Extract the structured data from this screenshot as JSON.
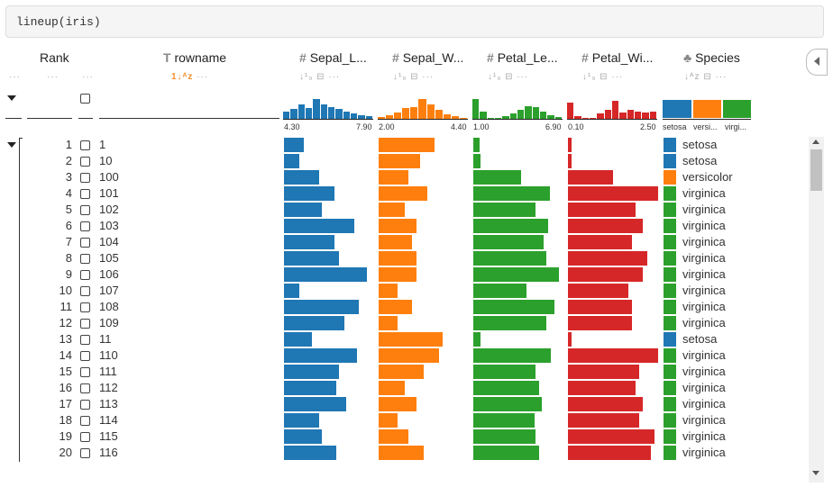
{
  "code": "lineup(iris)",
  "headers": {
    "rank": "Rank",
    "rowname": "rowname",
    "sepal_length": "Sepal_L...",
    "sepal_width": "Sepal_W...",
    "petal_length": "Petal_Le...",
    "petal_width": "Petal_Wi...",
    "species": "Species"
  },
  "icons": {
    "text_type": "T",
    "numeric_type": "#",
    "more": "···",
    "sort_num": "↓¹₉",
    "sort_alpha": "1↓ᴬᴢ",
    "sort_alpha_inactive": "↓ᴬᴢ",
    "filter": "⊟"
  },
  "axis": {
    "sepal_length": {
      "min": "4.30",
      "max": "7.90"
    },
    "sepal_width": {
      "min": "2.00",
      "max": "4.40"
    },
    "petal_length": {
      "min": "1.00",
      "max": "6.90"
    },
    "petal_width": {
      "min": "0.10",
      "max": "2.50"
    }
  },
  "species_labels": {
    "setosa": "setosa",
    "versicolor": "versi...",
    "virginica": "virgi..."
  },
  "colors": {
    "sepal_length": "#1f77b4",
    "sepal_width": "#ff7f0e",
    "petal_length": "#2ca02c",
    "petal_width": "#d62728",
    "setosa": "#1f77b4",
    "versicolor": "#ff7f0e",
    "virginica": "#2ca02c"
  },
  "histograms": {
    "sepal_length": [
      0.38,
      0.5,
      0.72,
      0.55,
      1.0,
      0.72,
      0.6,
      0.5,
      0.38,
      0.28,
      0.18,
      0.12
    ],
    "sepal_width": [
      0.1,
      0.18,
      0.32,
      0.55,
      0.6,
      1.0,
      0.72,
      0.45,
      0.25,
      0.12,
      0.06
    ],
    "petal_length": [
      1.0,
      0.38,
      0.04,
      0.04,
      0.12,
      0.28,
      0.45,
      0.62,
      0.6,
      0.38,
      0.18,
      0.08
    ],
    "petal_width": [
      0.82,
      0.12,
      0.04,
      0.04,
      0.28,
      0.45,
      0.92,
      0.3,
      0.45,
      0.38,
      0.3,
      0.35
    ]
  },
  "rows": [
    {
      "rank": "1",
      "name": "1",
      "sl": 5.1,
      "sw": 3.5,
      "pl": 1.4,
      "pw": 0.2,
      "species": "setosa"
    },
    {
      "rank": "2",
      "name": "10",
      "sl": 4.9,
      "sw": 3.1,
      "pl": 1.5,
      "pw": 0.1,
      "species": "setosa"
    },
    {
      "rank": "3",
      "name": "100",
      "sl": 5.7,
      "sw": 2.8,
      "pl": 4.1,
      "pw": 1.3,
      "species": "versicolor"
    },
    {
      "rank": "4",
      "name": "101",
      "sl": 6.3,
      "sw": 3.3,
      "pl": 6.0,
      "pw": 2.5,
      "species": "virginica"
    },
    {
      "rank": "5",
      "name": "102",
      "sl": 5.8,
      "sw": 2.7,
      "pl": 5.1,
      "pw": 1.9,
      "species": "virginica"
    },
    {
      "rank": "6",
      "name": "103",
      "sl": 7.1,
      "sw": 3.0,
      "pl": 5.9,
      "pw": 2.1,
      "species": "virginica"
    },
    {
      "rank": "7",
      "name": "104",
      "sl": 6.3,
      "sw": 2.9,
      "pl": 5.6,
      "pw": 1.8,
      "species": "virginica"
    },
    {
      "rank": "8",
      "name": "105",
      "sl": 6.5,
      "sw": 3.0,
      "pl": 5.8,
      "pw": 2.2,
      "species": "virginica"
    },
    {
      "rank": "9",
      "name": "106",
      "sl": 7.6,
      "sw": 3.0,
      "pl": 6.6,
      "pw": 2.1,
      "species": "virginica"
    },
    {
      "rank": "10",
      "name": "107",
      "sl": 4.9,
      "sw": 2.5,
      "pl": 4.5,
      "pw": 1.7,
      "species": "virginica"
    },
    {
      "rank": "11",
      "name": "108",
      "sl": 7.3,
      "sw": 2.9,
      "pl": 6.3,
      "pw": 1.8,
      "species": "virginica"
    },
    {
      "rank": "12",
      "name": "109",
      "sl": 6.7,
      "sw": 2.5,
      "pl": 5.8,
      "pw": 1.8,
      "species": "virginica"
    },
    {
      "rank": "13",
      "name": "11",
      "sl": 5.4,
      "sw": 3.7,
      "pl": 1.5,
      "pw": 0.2,
      "species": "setosa"
    },
    {
      "rank": "14",
      "name": "110",
      "sl": 7.2,
      "sw": 3.6,
      "pl": 6.1,
      "pw": 2.5,
      "species": "virginica"
    },
    {
      "rank": "15",
      "name": "111",
      "sl": 6.5,
      "sw": 3.2,
      "pl": 5.1,
      "pw": 2.0,
      "species": "virginica"
    },
    {
      "rank": "16",
      "name": "112",
      "sl": 6.4,
      "sw": 2.7,
      "pl": 5.3,
      "pw": 1.9,
      "species": "virginica"
    },
    {
      "rank": "17",
      "name": "113",
      "sl": 6.8,
      "sw": 3.0,
      "pl": 5.5,
      "pw": 2.1,
      "species": "virginica"
    },
    {
      "rank": "18",
      "name": "114",
      "sl": 5.7,
      "sw": 2.5,
      "pl": 5.0,
      "pw": 2.0,
      "species": "virginica"
    },
    {
      "rank": "19",
      "name": "115",
      "sl": 5.8,
      "sw": 2.8,
      "pl": 5.1,
      "pw": 2.4,
      "species": "virginica"
    },
    {
      "rank": "20",
      "name": "116",
      "sl": 6.4,
      "sw": 3.2,
      "pl": 5.3,
      "pw": 2.3,
      "species": "virginica"
    }
  ]
}
